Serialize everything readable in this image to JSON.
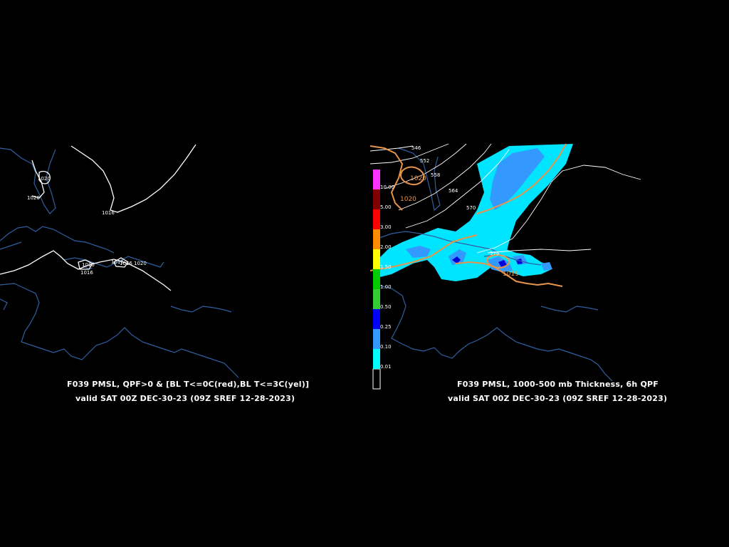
{
  "left_panel": {
    "caption_line1": "F039 PMSL, QPF>0 & [BL T<=0C(red),BL T<=3C(yel)]",
    "caption_line2": "valid SAT 00Z DEC-30-23 (09Z SREF 12-28-2023)",
    "isobar_labels": [
      "1020",
      "1020",
      "1016",
      "1016",
      "1016",
      "1016",
      "1016",
      "1020"
    ]
  },
  "right_panel": {
    "caption_line1": "F039 PMSL, 1000-500 mb Thickness, 6h QPF",
    "caption_line2": "valid SAT 00Z DEC-30-23 (09Z SREF 12-28-2023)",
    "thickness_labels": [
      "546",
      "552",
      "558",
      "564",
      "570",
      "576"
    ],
    "isobar_labels": [
      "1020",
      "1020",
      "1019"
    ],
    "colorbar": [
      {
        "value": "10.00",
        "color": "#ff33ff"
      },
      {
        "value": "5.00",
        "color": "#800000"
      },
      {
        "value": "3.00",
        "color": "#ff0000"
      },
      {
        "value": "2.00",
        "color": "#ff8c00"
      },
      {
        "value": "1.50",
        "color": "#ffff00"
      },
      {
        "value": "1.00",
        "color": "#00cc00"
      },
      {
        "value": "0.50",
        "color": "#33cc33"
      },
      {
        "value": "0.25",
        "color": "#0000ff"
      },
      {
        "value": "0.10",
        "color": "#3399ff"
      },
      {
        "value": "0.01",
        "color": "#00ffff"
      }
    ]
  },
  "colors": {
    "coastline": "#2f5f9f",
    "isobar": "#ffffff",
    "thickness": "#ffffff",
    "orange_contour": "#e8944a",
    "qpf_light": "#00e5ff",
    "qpf_mid": "#3399ff",
    "qpf_heavy": "#0000dd"
  }
}
